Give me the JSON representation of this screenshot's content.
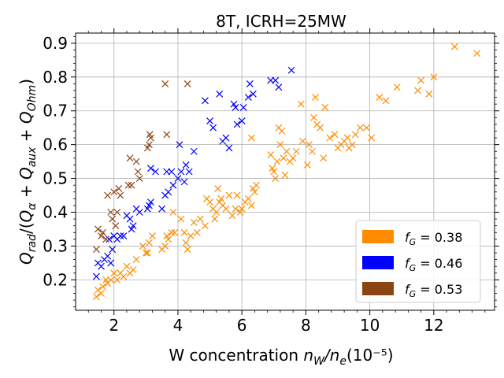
{
  "chart_data": {
    "type": "scatter",
    "title": "8T, ICRH=25MW",
    "xlabel_prefix": "W concentration ",
    "xlabel_var": "n_W/n_e",
    "xlabel_units": "(10⁻⁵)",
    "ylabel": "Q_rad/(Q_α + Q_aux + Q_Ohm)",
    "xlim": [
      0.8,
      13.9
    ],
    "ylim": [
      0.11,
      0.93
    ],
    "x_ticks": [
      2,
      4,
      6,
      8,
      10,
      12
    ],
    "y_ticks": [
      0.2,
      0.3,
      0.4,
      0.5,
      0.6,
      0.7,
      0.8,
      0.9
    ],
    "x_tick_labels": [
      "2",
      "4",
      "6",
      "8",
      "10",
      "12"
    ],
    "y_tick_labels": [
      "0.2",
      "0.3",
      "0.4",
      "0.5",
      "0.6",
      "0.7",
      "0.8",
      "0.9"
    ],
    "grid": true,
    "marker": "x",
    "legend_position": "lower-right",
    "series": [
      {
        "name": "f_G = 0.38",
        "color": "#FF8C00",
        "points": [
          [
            1.45,
            0.15
          ],
          [
            1.5,
            0.17
          ],
          [
            1.6,
            0.16
          ],
          [
            1.65,
            0.18
          ],
          [
            1.75,
            0.2
          ],
          [
            1.8,
            0.19
          ],
          [
            1.9,
            0.2
          ],
          [
            2.0,
            0.22
          ],
          [
            2.1,
            0.2
          ],
          [
            2.2,
            0.22
          ],
          [
            2.3,
            0.21
          ],
          [
            2.4,
            0.24
          ],
          [
            2.5,
            0.22
          ],
          [
            2.6,
            0.23
          ],
          [
            2.7,
            0.26
          ],
          [
            2.9,
            0.3
          ],
          [
            3.0,
            0.28
          ],
          [
            3.05,
            0.28
          ],
          [
            3.1,
            0.31
          ],
          [
            3.2,
            0.33
          ],
          [
            3.5,
            0.29
          ],
          [
            3.6,
            0.3
          ],
          [
            3.65,
            0.33
          ],
          [
            3.7,
            0.32
          ],
          [
            3.8,
            0.34
          ],
          [
            3.85,
            0.4
          ],
          [
            3.9,
            0.34
          ],
          [
            4.1,
            0.38
          ],
          [
            4.2,
            0.34
          ],
          [
            4.25,
            0.31
          ],
          [
            4.3,
            0.29
          ],
          [
            4.4,
            0.33
          ],
          [
            4.5,
            0.37
          ],
          [
            4.6,
            0.34
          ],
          [
            4.7,
            0.38
          ],
          [
            4.85,
            0.36
          ],
          [
            4.9,
            0.44
          ],
          [
            5.0,
            0.43
          ],
          [
            5.1,
            0.41
          ],
          [
            5.15,
            0.38
          ],
          [
            5.2,
            0.4
          ],
          [
            5.25,
            0.47
          ],
          [
            5.3,
            0.43
          ],
          [
            5.35,
            0.44
          ],
          [
            5.4,
            0.42
          ],
          [
            5.5,
            0.41
          ],
          [
            5.6,
            0.45
          ],
          [
            5.7,
            0.39
          ],
          [
            5.8,
            0.41
          ],
          [
            5.85,
            0.45
          ],
          [
            5.95,
            0.4
          ],
          [
            6.0,
            0.41
          ],
          [
            6.1,
            0.43
          ],
          [
            6.2,
            0.44
          ],
          [
            6.3,
            0.42
          ],
          [
            6.35,
            0.47
          ],
          [
            6.4,
            0.46
          ],
          [
            6.45,
            0.48
          ],
          [
            6.3,
            0.62
          ],
          [
            6.9,
            0.57
          ],
          [
            6.95,
            0.53
          ],
          [
            7.0,
            0.52
          ],
          [
            7.05,
            0.5
          ],
          [
            7.1,
            0.55
          ],
          [
            7.15,
            0.65
          ],
          [
            7.2,
            0.6
          ],
          [
            7.25,
            0.64
          ],
          [
            7.3,
            0.56
          ],
          [
            7.35,
            0.51
          ],
          [
            7.4,
            0.58
          ],
          [
            7.5,
            0.55
          ],
          [
            7.6,
            0.56
          ],
          [
            7.7,
            0.58
          ],
          [
            7.85,
            0.72
          ],
          [
            7.9,
            0.61
          ],
          [
            8.05,
            0.54
          ],
          [
            8.1,
            0.6
          ],
          [
            8.2,
            0.58
          ],
          [
            8.25,
            0.68
          ],
          [
            8.3,
            0.74
          ],
          [
            8.35,
            0.66
          ],
          [
            8.45,
            0.65
          ],
          [
            8.55,
            0.56
          ],
          [
            8.6,
            0.71
          ],
          [
            8.75,
            0.62
          ],
          [
            8.9,
            0.63
          ],
          [
            9.0,
            0.59
          ],
          [
            9.1,
            0.6
          ],
          [
            9.2,
            0.61
          ],
          [
            9.3,
            0.62
          ],
          [
            9.35,
            0.59
          ],
          [
            9.45,
            0.6
          ],
          [
            9.55,
            0.63
          ],
          [
            9.7,
            0.65
          ],
          [
            9.9,
            0.65
          ],
          [
            10.05,
            0.62
          ],
          [
            10.3,
            0.74
          ],
          [
            10.5,
            0.73
          ],
          [
            10.85,
            0.77
          ],
          [
            11.5,
            0.76
          ],
          [
            11.6,
            0.79
          ],
          [
            11.85,
            0.75
          ],
          [
            12.0,
            0.8
          ],
          [
            12.65,
            0.89
          ],
          [
            13.35,
            0.87
          ]
        ]
      },
      {
        "name": "f_G = 0.46",
        "color": "#0000FF",
        "points": [
          [
            1.45,
            0.21
          ],
          [
            1.5,
            0.25
          ],
          [
            1.6,
            0.24
          ],
          [
            1.7,
            0.26
          ],
          [
            1.8,
            0.27
          ],
          [
            1.85,
            0.32
          ],
          [
            1.9,
            0.25
          ],
          [
            1.95,
            0.29
          ],
          [
            2.0,
            0.33
          ],
          [
            2.1,
            0.32
          ],
          [
            2.2,
            0.33
          ],
          [
            2.3,
            0.33
          ],
          [
            2.4,
            0.39
          ],
          [
            2.5,
            0.38
          ],
          [
            2.55,
            0.35
          ],
          [
            2.6,
            0.36
          ],
          [
            2.7,
            0.41
          ],
          [
            2.8,
            0.4
          ],
          [
            3.05,
            0.41
          ],
          [
            3.1,
            0.42
          ],
          [
            3.15,
            0.43
          ],
          [
            3.15,
            0.53
          ],
          [
            3.3,
            0.52
          ],
          [
            3.5,
            0.41
          ],
          [
            3.6,
            0.45
          ],
          [
            3.65,
            0.52
          ],
          [
            3.7,
            0.46
          ],
          [
            3.8,
            0.52
          ],
          [
            3.85,
            0.48
          ],
          [
            4.0,
            0.5
          ],
          [
            4.05,
            0.6
          ],
          [
            4.1,
            0.52
          ],
          [
            4.2,
            0.49
          ],
          [
            4.25,
            0.54
          ],
          [
            4.35,
            0.52
          ],
          [
            4.5,
            0.58
          ],
          [
            4.85,
            0.73
          ],
          [
            5.0,
            0.67
          ],
          [
            5.1,
            0.65
          ],
          [
            5.3,
            0.75
          ],
          [
            5.4,
            0.61
          ],
          [
            5.5,
            0.62
          ],
          [
            5.6,
            0.59
          ],
          [
            5.75,
            0.72
          ],
          [
            5.8,
            0.71
          ],
          [
            5.85,
            0.66
          ],
          [
            6.0,
            0.67
          ],
          [
            6.05,
            0.71
          ],
          [
            6.2,
            0.74
          ],
          [
            6.25,
            0.78
          ],
          [
            6.35,
            0.75
          ],
          [
            6.9,
            0.79
          ],
          [
            7.05,
            0.79
          ],
          [
            7.15,
            0.77
          ],
          [
            7.55,
            0.82
          ]
        ]
      },
      {
        "name": "f_G = 0.53",
        "color": "#8B4513",
        "points": [
          [
            1.45,
            0.29
          ],
          [
            1.5,
            0.35
          ],
          [
            1.6,
            0.33
          ],
          [
            1.65,
            0.34
          ],
          [
            1.75,
            0.32
          ],
          [
            1.8,
            0.45
          ],
          [
            1.9,
            0.4
          ],
          [
            1.95,
            0.38
          ],
          [
            2.0,
            0.46
          ],
          [
            2.05,
            0.36
          ],
          [
            2.1,
            0.4
          ],
          [
            2.15,
            0.47
          ],
          [
            2.2,
            0.45
          ],
          [
            2.45,
            0.48
          ],
          [
            2.5,
            0.56
          ],
          [
            2.55,
            0.48
          ],
          [
            2.7,
            0.55
          ],
          [
            2.75,
            0.52
          ],
          [
            2.8,
            0.5
          ],
          [
            3.05,
            0.59
          ],
          [
            3.1,
            0.6
          ],
          [
            3.12,
            0.63
          ],
          [
            3.15,
            0.62
          ],
          [
            3.6,
            0.78
          ],
          [
            3.65,
            0.63
          ],
          [
            4.3,
            0.78
          ]
        ]
      }
    ],
    "legend_entries": [
      {
        "label_main": "f",
        "label_sub": "G",
        "label_rest": " = 0.38",
        "color": "#FF8C00"
      },
      {
        "label_main": "f",
        "label_sub": "G",
        "label_rest": " = 0.46",
        "color": "#0000FF"
      },
      {
        "label_main": "f",
        "label_sub": "G",
        "label_rest": " = 0.53",
        "color": "#8B4513"
      }
    ]
  }
}
